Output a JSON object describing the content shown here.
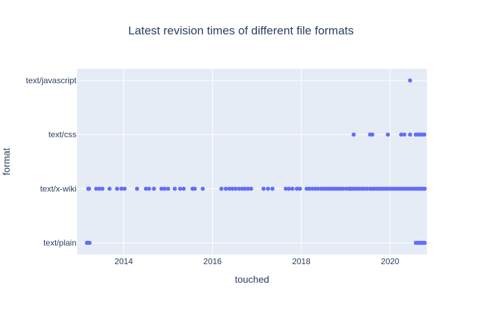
{
  "colors": {
    "plot_bg": "#e5ecf6",
    "grid": "#ffffff",
    "marker": "#636efa",
    "text": "#2a3f5f",
    "paper": "#ffffff"
  },
  "chart_data": {
    "type": "scatter",
    "title": "Latest revision times of different file formats",
    "xlabel": "touched",
    "ylabel": "format",
    "categories": [
      "text/plain",
      "text/x-wiki",
      "text/css",
      "text/javascript"
    ],
    "xlim": [
      2012.95,
      2020.83
    ],
    "x_ticks": [
      2014,
      2016,
      2018,
      2020
    ],
    "x_tick_labels": [
      "2014",
      "2016",
      "2018",
      "2020"
    ],
    "grid": true,
    "legend": "none",
    "series": [
      {
        "category": "text/javascript",
        "x": [
          2020.45
        ]
      },
      {
        "category": "text/css",
        "x": [
          2019.18,
          2019.55,
          2019.6,
          2019.95,
          2020.25,
          2020.32,
          2020.45,
          2020.58,
          2020.63,
          2020.68,
          2020.73,
          2020.77
        ]
      },
      {
        "category": "text/x-wiki",
        "x": [
          2013.2,
          2013.22,
          2013.38,
          2013.45,
          2013.52,
          2013.68,
          2013.85,
          2013.95,
          2014.02,
          2014.3,
          2014.5,
          2014.57,
          2014.68,
          2014.85,
          2014.92,
          2015.0,
          2015.15,
          2015.27,
          2015.35,
          2015.55,
          2015.6,
          2015.78,
          2016.2,
          2016.3,
          2016.38,
          2016.45,
          2016.52,
          2016.6,
          2016.67,
          2016.73,
          2016.8,
          2016.87,
          2017.15,
          2017.25,
          2017.35,
          2017.65,
          2017.72,
          2017.8,
          2017.9,
          2017.97,
          2018.12,
          2018.18,
          2018.25,
          2018.32,
          2018.38,
          2018.45,
          2018.5,
          2018.55,
          2018.6,
          2018.65,
          2018.7,
          2018.75,
          2018.8,
          2018.85,
          2018.9,
          2018.95,
          2019.02,
          2019.08,
          2019.12,
          2019.17,
          2019.22,
          2019.27,
          2019.32,
          2019.37,
          2019.42,
          2019.48,
          2019.55,
          2019.6,
          2019.65,
          2019.7,
          2019.75,
          2019.8,
          2019.85,
          2019.9,
          2019.95,
          2020.0,
          2020.05,
          2020.1,
          2020.15,
          2020.2,
          2020.25,
          2020.3,
          2020.35,
          2020.4,
          2020.45,
          2020.5,
          2020.55,
          2020.6,
          2020.65,
          2020.7,
          2020.74,
          2020.78
        ]
      },
      {
        "category": "text/plain",
        "x": [
          2013.17,
          2013.2,
          2013.23,
          2020.58,
          2020.62,
          2020.66,
          2020.7,
          2020.74,
          2020.78
        ]
      }
    ]
  }
}
